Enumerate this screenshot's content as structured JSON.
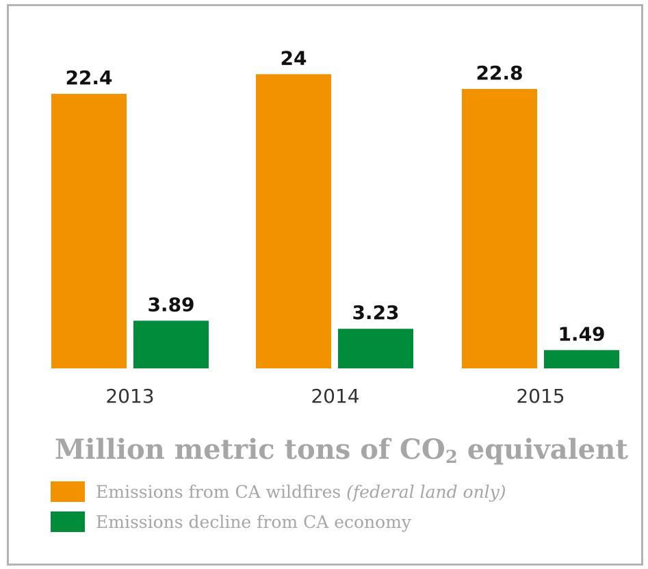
{
  "chart_data": {
    "type": "bar",
    "categories": [
      "2013",
      "2014",
      "2015"
    ],
    "series": [
      {
        "name": "Emissions from CA wildfires (federal land only)",
        "values": [
          22.4,
          24,
          22.8
        ],
        "color": "#f39200"
      },
      {
        "name": "Emissions decline from CA economy",
        "values": [
          3.89,
          3.23,
          1.49
        ],
        "color": "#008c3a"
      }
    ],
    "value_labels": [
      [
        "22.4",
        "24",
        "22.8"
      ],
      [
        "3.89",
        "3.23",
        "1.49"
      ]
    ],
    "title": "Million metric tons of CO2 equivalent",
    "ylim": [
      0,
      25
    ],
    "grid": false,
    "legend_position": "bottom-left"
  },
  "title": {
    "main": "Million metric tons of CO",
    "sub": "2",
    "tail": " equivalent"
  },
  "legend": [
    {
      "text": "Emissions from CA wildfires ",
      "italic": "(federal land only)",
      "color": "#f39200"
    },
    {
      "text": "Emissions decline from CA economy",
      "italic": "",
      "color": "#008c3a"
    }
  ]
}
